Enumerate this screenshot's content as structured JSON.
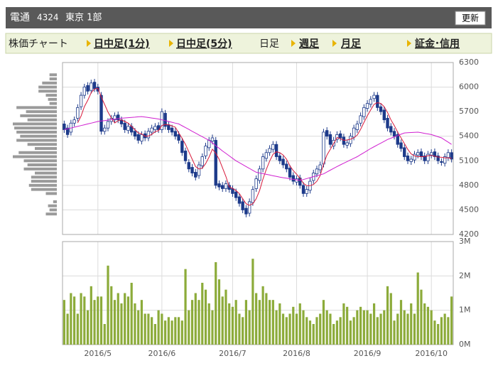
{
  "header": {
    "title": "電通",
    "code": "4324",
    "market": "東京 1部",
    "button": "更新"
  },
  "nav": {
    "label": "株価チャート",
    "links": [
      "日中足(1分)",
      "日中足(5分)",
      "日足",
      "週足",
      "月足",
      "証金･信用"
    ]
  },
  "chart_data": [
    {
      "type": "candlestick",
      "ylim": [
        4200,
        6300
      ],
      "yticks": [
        4200,
        4500,
        4800,
        5100,
        5400,
        5700,
        6000,
        6300
      ],
      "grid": true,
      "up_color": "#ffffff",
      "down_color": "#1d3a8a",
      "open": [
        5550,
        5500,
        5450,
        5560,
        5620,
        5760,
        5900,
        6020,
        5960,
        6060,
        6000,
        5900,
        5460,
        5500,
        5580,
        5600,
        5660,
        5600,
        5560,
        5470,
        5520,
        5460,
        5420,
        5340,
        5430,
        5380,
        5450,
        5480,
        5530,
        5480,
        5680,
        5540,
        5500,
        5460,
        5420,
        5340,
        5220,
        5080,
        5020,
        4960,
        4920,
        5040,
        5160,
        5260,
        5340,
        5350,
        4820,
        4800,
        4760,
        4800,
        4760,
        4720,
        4660,
        4600,
        4520,
        4460,
        4590,
        4760,
        4860,
        5000,
        5130,
        5200,
        5240,
        5300,
        5160,
        5120,
        5060,
        5010,
        4920,
        4840,
        4890,
        4800,
        4700,
        4740,
        4860,
        4940,
        4990,
        5060,
        5470,
        5420,
        5280,
        5360,
        5430,
        5390,
        5290,
        5310,
        5390,
        5480,
        5560,
        5640,
        5740,
        5790,
        5860,
        5900,
        5760,
        5720,
        5620,
        5520,
        5460,
        5420,
        5320,
        5260,
        5160,
        5090,
        5110,
        5170,
        5210,
        5160,
        5100,
        5170,
        5210,
        5160,
        5090,
        5070,
        5140,
        5200
      ],
      "high": [
        5590,
        5540,
        5600,
        5640,
        5790,
        5940,
        6040,
        6060,
        6090,
        6100,
        6040,
        5940,
        5540,
        5620,
        5660,
        5690,
        5700,
        5640,
        5600,
        5560,
        5560,
        5500,
        5460,
        5460,
        5470,
        5500,
        5540,
        5560,
        5570,
        5740,
        5720,
        5580,
        5540,
        5500,
        5460,
        5380,
        5260,
        5120,
        5060,
        5000,
        5090,
        5190,
        5320,
        5390,
        5420,
        5390,
        4860,
        4840,
        4860,
        4840,
        4800,
        4760,
        4700,
        4640,
        4560,
        4640,
        4790,
        4920,
        5040,
        5190,
        5240,
        5290,
        5340,
        5340,
        5200,
        5160,
        5100,
        5050,
        4960,
        4920,
        4930,
        4840,
        4790,
        4890,
        4990,
        5040,
        5090,
        5490,
        5510,
        5460,
        5390,
        5460,
        5470,
        5430,
        5360,
        5440,
        5540,
        5590,
        5690,
        5790,
        5840,
        5890,
        5940,
        5940,
        5800,
        5760,
        5660,
        5560,
        5500,
        5460,
        5360,
        5300,
        5200,
        5160,
        5220,
        5240,
        5250,
        5200,
        5220,
        5240,
        5250,
        5200,
        5130,
        5190,
        5240,
        5240
      ],
      "low": [
        5440,
        5380,
        5410,
        5520,
        5580,
        5720,
        5860,
        5910,
        5920,
        5940,
        5910,
        5420,
        5420,
        5460,
        5540,
        5560,
        5560,
        5510,
        5440,
        5430,
        5410,
        5360,
        5310,
        5300,
        5340,
        5340,
        5410,
        5440,
        5440,
        5440,
        5480,
        5440,
        5410,
        5360,
        5310,
        5160,
        5060,
        4960,
        4910,
        4860,
        4880,
        5000,
        5120,
        5220,
        5300,
        4760,
        4740,
        4720,
        4720,
        4710,
        4660,
        4610,
        4540,
        4460,
        4410,
        4420,
        4550,
        4720,
        4820,
        4960,
        5090,
        5160,
        5200,
        5110,
        5060,
        5010,
        4960,
        4860,
        4810,
        4800,
        4760,
        4660,
        4660,
        4700,
        4820,
        4900,
        4950,
        5020,
        5360,
        5260,
        5240,
        5320,
        5340,
        5260,
        5250,
        5270,
        5350,
        5440,
        5520,
        5600,
        5700,
        5750,
        5820,
        5710,
        5660,
        5560,
        5460,
        5410,
        5360,
        5260,
        5210,
        5110,
        5060,
        5050,
        5070,
        5130,
        5110,
        5060,
        5060,
        5130,
        5110,
        5060,
        5040,
        5030,
        5100,
        5080
      ],
      "close": [
        5480,
        5420,
        5560,
        5600,
        5750,
        5900,
        6000,
        5950,
        6050,
        5980,
        5950,
        5460,
        5500,
        5580,
        5620,
        5650,
        5600,
        5550,
        5480,
        5520,
        5450,
        5400,
        5350,
        5420,
        5380,
        5460,
        5500,
        5520,
        5480,
        5700,
        5520,
        5480,
        5450,
        5400,
        5350,
        5200,
        5100,
        5000,
        4950,
        4900,
        5050,
        5150,
        5280,
        5350,
        5380,
        4800,
        4780,
        4760,
        4820,
        4750,
        4700,
        4650,
        4580,
        4500,
        4450,
        4600,
        4750,
        4880,
        5000,
        5150,
        5200,
        5250,
        5300,
        5150,
        5100,
        5050,
        5000,
        4900,
        4850,
        4880,
        4800,
        4700,
        4750,
        4850,
        4950,
        5000,
        5050,
        5450,
        5400,
        5300,
        5350,
        5420,
        5380,
        5300,
        5320,
        5400,
        5500,
        5550,
        5650,
        5750,
        5800,
        5850,
        5900,
        5750,
        5700,
        5600,
        5500,
        5450,
        5400,
        5300,
        5250,
        5150,
        5100,
        5120,
        5180,
        5200,
        5150,
        5100,
        5180,
        5200,
        5150,
        5100,
        5080,
        5150,
        5200,
        5120
      ],
      "lines": [
        {
          "color": "#d81b3c",
          "values": [
            null,
            null,
            null,
            null,
            5562,
            5646,
            5762,
            5840,
            5930,
            5976,
            5986,
            5878,
            5788,
            5694,
            5622,
            5562,
            5590,
            5600,
            5580,
            5560,
            5520,
            5480,
            5440,
            5428,
            5400,
            5402,
            5422,
            5456,
            5468,
            5532,
            5544,
            5540,
            5526,
            5510,
            5440,
            5376,
            5300,
            5210,
            5120,
            5030,
            5000,
            5010,
            5066,
            5146,
            5242,
            5192,
            5118,
            5014,
            4908,
            4782,
            4762,
            4736,
            4700,
            4636,
            4576,
            4556,
            4576,
            4636,
            4736,
            4876,
            4996,
            5096,
            5180,
            5210,
            5200,
            5170,
            5120,
            5040,
            4980,
            4936,
            4886,
            4826,
            4796,
            4796,
            4810,
            4850,
            4920,
            5060,
            5170,
            5240,
            5310,
            5384,
            5370,
            5350,
            5354,
            5364,
            5380,
            5414,
            5484,
            5570,
            5650,
            5720,
            5790,
            5810,
            5800,
            5760,
            5690,
            5600,
            5530,
            5450,
            5380,
            5310,
            5240,
            5184,
            5160,
            5150,
            5150,
            5150,
            5162,
            5166,
            5156,
            5146,
            5142,
            5136,
            5136,
            5130
          ]
        },
        {
          "color": "#d020d0",
          "values": [
            5480,
            5490,
            5500,
            5510,
            5520,
            5530,
            5540,
            5550,
            5560,
            5570,
            5580,
            5586,
            5591,
            5597,
            5603,
            5609,
            5614,
            5620,
            5623,
            5627,
            5630,
            5633,
            5637,
            5640,
            5634,
            5628,
            5622,
            5616,
            5610,
            5600,
            5590,
            5580,
            5570,
            5560,
            5550,
            5528,
            5505,
            5483,
            5460,
            5438,
            5416,
            5394,
            5372,
            5350,
            5318,
            5285,
            5253,
            5220,
            5190,
            5160,
            5130,
            5100,
            5077,
            5053,
            5030,
            5007,
            4983,
            4960,
            4951,
            4943,
            4934,
            4926,
            4917,
            4909,
            4900,
            4893,
            4887,
            4880,
            4873,
            4867,
            4860,
            4871,
            4883,
            4894,
            4906,
            4917,
            4929,
            4940,
            4963,
            4985,
            5008,
            5030,
            5050,
            5070,
            5090,
            5110,
            5130,
            5150,
            5175,
            5200,
            5225,
            5250,
            5272,
            5294,
            5316,
            5338,
            5360,
            5376,
            5392,
            5408,
            5424,
            5440,
            5443,
            5445,
            5448,
            5450,
            5443,
            5435,
            5428,
            5420,
            5407,
            5393,
            5380,
            5353,
            5327,
            5300
          ]
        }
      ],
      "volume_profile": {
        "color": "#9a9a9a",
        "prices": [
          6150,
          6100,
          6050,
          6000,
          5950,
          5900,
          5850,
          5800,
          5750,
          5700,
          5650,
          5600,
          5550,
          5500,
          5450,
          5400,
          5350,
          5300,
          5250,
          5200,
          5150,
          5100,
          5050,
          5000,
          4950,
          4900,
          4850,
          4800,
          4750,
          4700,
          4650,
          4600,
          4550,
          4500,
          4450
        ],
        "values": [
          10,
          10,
          20,
          25,
          25,
          15,
          12,
          10,
          55,
          42,
          50,
          40,
          60,
          58,
          55,
          50,
          55,
          40,
          30,
          52,
          60,
          45,
          40,
          45,
          30,
          35,
          35,
          38,
          35,
          15,
          0,
          5,
          12,
          10,
          15
        ]
      }
    },
    {
      "type": "bar",
      "color": "#8cab3a",
      "ylim": [
        0,
        3
      ],
      "yticks": [
        {
          "value": 0,
          "label": "0M"
        },
        {
          "value": 1,
          "label": "1M"
        },
        {
          "value": 2,
          "label": "2M"
        },
        {
          "value": 3,
          "label": "3M"
        }
      ],
      "grid": true,
      "categories": [
        null,
        null,
        null,
        null,
        null,
        null,
        null,
        null,
        null,
        null,
        "2016/5",
        null,
        null,
        null,
        null,
        null,
        null,
        null,
        null,
        null,
        null,
        null,
        null,
        null,
        null,
        null,
        null,
        null,
        null,
        "2016/6",
        null,
        null,
        null,
        null,
        null,
        null,
        null,
        null,
        null,
        null,
        null,
        null,
        null,
        null,
        null,
        null,
        null,
        null,
        null,
        null,
        "2016/7",
        null,
        null,
        null,
        null,
        null,
        null,
        null,
        null,
        null,
        null,
        null,
        null,
        null,
        null,
        null,
        null,
        null,
        null,
        "2016/8",
        null,
        null,
        null,
        null,
        null,
        null,
        null,
        null,
        null,
        null,
        null,
        null,
        null,
        null,
        null,
        null,
        null,
        null,
        null,
        null,
        "2016/9",
        null,
        null,
        null,
        null,
        null,
        null,
        null,
        null,
        null,
        null,
        null,
        null,
        null,
        null,
        null,
        null,
        null,
        null,
        "2016/10",
        null,
        null,
        null,
        null,
        null,
        null
      ],
      "values": [
        1.3,
        0.9,
        1.5,
        1.4,
        0.9,
        1.5,
        1.4,
        1.0,
        1.7,
        1.3,
        1.4,
        1.4,
        0.6,
        2.3,
        1.7,
        1.3,
        1.5,
        1.2,
        1.5,
        1.4,
        1.8,
        1.2,
        1.0,
        1.3,
        0.9,
        0.9,
        0.8,
        0.6,
        1.0,
        0.9,
        0.7,
        0.8,
        0.7,
        0.8,
        0.8,
        0.7,
        2.2,
        1.0,
        1.3,
        1.5,
        1.3,
        1.8,
        1.6,
        1.2,
        1.0,
        2.4,
        1.9,
        1.4,
        1.6,
        1.2,
        1.1,
        1.3,
        0.9,
        0.8,
        1.3,
        1.0,
        2.5,
        1.5,
        1.3,
        1.7,
        1.5,
        1.3,
        1.3,
        1.0,
        1.2,
        0.9,
        0.8,
        0.9,
        1.1,
        0.9,
        1.2,
        1.0,
        0.8,
        0.7,
        0.6,
        0.8,
        0.9,
        1.3,
        1.0,
        0.9,
        0.6,
        0.7,
        0.8,
        1.2,
        1.1,
        0.7,
        0.8,
        1.0,
        1.1,
        1.0,
        1.0,
        0.9,
        1.2,
        0.8,
        0.9,
        1.0,
        1.7,
        1.5,
        0.7,
        0.9,
        1.3,
        1.0,
        0.9,
        1.2,
        0.9,
        2.1,
        1.6,
        1.2,
        1.1,
        1.0,
        0.7,
        0.6,
        0.8,
        0.9,
        0.8,
        1.4
      ]
    }
  ]
}
